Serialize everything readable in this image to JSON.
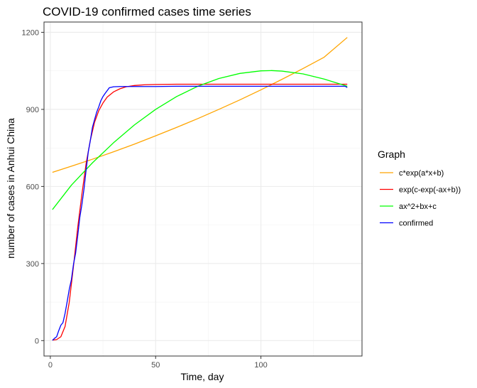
{
  "chart_data": {
    "type": "line",
    "title": "COVID-19 confirmed cases time series",
    "xlabel": "Time, day",
    "ylabel": "number of cases in Anhui China",
    "xlim": [
      -3,
      148
    ],
    "ylim": [
      -60,
      1240
    ],
    "x_ticks": [
      0,
      50,
      100
    ],
    "y_ticks": [
      0,
      300,
      600,
      900,
      1200
    ],
    "grid": true,
    "legend": {
      "title": "Graph",
      "position": "right"
    },
    "series": [
      {
        "name": "c*exp(a*x+b)",
        "color": "#FFA500",
        "x": [
          1,
          10,
          20,
          30,
          40,
          50,
          60,
          70,
          80,
          90,
          100,
          110,
          120,
          130,
          141
        ],
        "y": [
          655,
          679,
          706,
          735,
          765,
          797,
          830,
          864,
          900,
          937,
          976,
          1017,
          1059,
          1103,
          1180
        ]
      },
      {
        "name": "exp(c-exp(-ax+b))",
        "color": "#FF0000",
        "x": [
          1,
          3,
          5,
          7,
          9,
          11,
          13,
          15,
          17,
          19,
          21,
          23,
          25,
          27,
          30,
          33,
          36,
          40,
          45,
          50,
          60,
          80,
          100,
          141
        ],
        "y": [
          2,
          4,
          15,
          55,
          150,
          290,
          440,
          570,
          690,
          780,
          850,
          895,
          925,
          948,
          968,
          980,
          988,
          993,
          996,
          997,
          998,
          998,
          998,
          998
        ]
      },
      {
        "name": "ax^2+bx+c",
        "color": "#00FF00",
        "x": [
          1,
          10,
          20,
          30,
          40,
          50,
          60,
          70,
          80,
          90,
          100,
          105,
          110,
          120,
          130,
          141
        ],
        "y": [
          510,
          605,
          692,
          770,
          840,
          900,
          950,
          990,
          1020,
          1040,
          1050,
          1051,
          1049,
          1038,
          1018,
          990
        ]
      },
      {
        "name": "confirmed",
        "color": "#0000FF",
        "x": [
          1,
          2,
          3,
          4,
          5,
          6,
          7,
          8,
          9,
          10,
          11,
          12,
          13,
          14,
          15,
          16,
          17,
          18,
          19,
          20,
          21,
          22,
          23,
          24,
          25,
          26,
          27,
          28,
          30,
          33,
          40,
          50,
          60,
          80,
          100,
          120,
          140,
          141
        ],
        "y": [
          1,
          9,
          15,
          39,
          60,
          70,
          106,
          152,
          200,
          237,
          297,
          340,
          408,
          480,
          530,
          591,
          665,
          733,
          779,
          830,
          860,
          889,
          910,
          934,
          950,
          962,
          973,
          984,
          988,
          989,
          989,
          989,
          990,
          990,
          990,
          990,
          990,
          985
        ]
      }
    ]
  }
}
